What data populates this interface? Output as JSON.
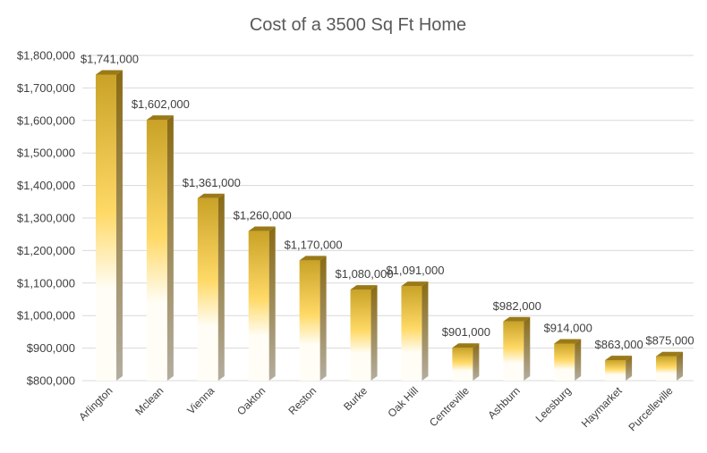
{
  "chart_data": {
    "type": "bar",
    "title": "Cost of a 3500 Sq Ft Home",
    "xlabel": "",
    "ylabel": "",
    "categories": [
      "Arlington",
      "Mclean",
      "Vienna",
      "Oakton",
      "Reston",
      "Burke",
      "Oak Hill",
      "Centreville",
      "Ashburn",
      "Leesburg",
      "Haymarket",
      "Purcelleville"
    ],
    "values": [
      1741000,
      1602000,
      1361000,
      1260000,
      1170000,
      1080000,
      1091000,
      901000,
      982000,
      914000,
      863000,
      875000
    ],
    "data_labels": [
      "$1,741,000",
      "$1,602,000",
      "$1,361,000",
      "$1,260,000",
      "$1,170,000",
      "$1,080,000",
      "$1,091,000",
      "$901,000",
      "$982,000",
      "$914,000",
      "$863,000",
      "$875,000"
    ],
    "ylim": [
      800000,
      1800000
    ],
    "yticks": [
      800000,
      900000,
      1000000,
      1100000,
      1200000,
      1300000,
      1400000,
      1500000,
      1600000,
      1700000,
      1800000
    ],
    "ytick_labels": [
      "$800,000",
      "$900,000",
      "$1,000,000",
      "$1,100,000",
      "$1,200,000",
      "$1,300,000",
      "$1,400,000",
      "$1,500,000",
      "$1,600,000",
      "$1,700,000",
      "$1,800,000"
    ],
    "grid": true,
    "legend": "none",
    "style": "3d-column",
    "colors": {
      "bar_top": "#c9a227",
      "bar_mid": "#ffd966",
      "bar_bottom": "#fffdf5",
      "bar_side": "#8a6a12",
      "bar_side_bottom": "#b3ada0",
      "bar_cap": "#9a7a18",
      "gridline": "#d9d9d9",
      "text": "#404040",
      "title": "#595959"
    }
  }
}
